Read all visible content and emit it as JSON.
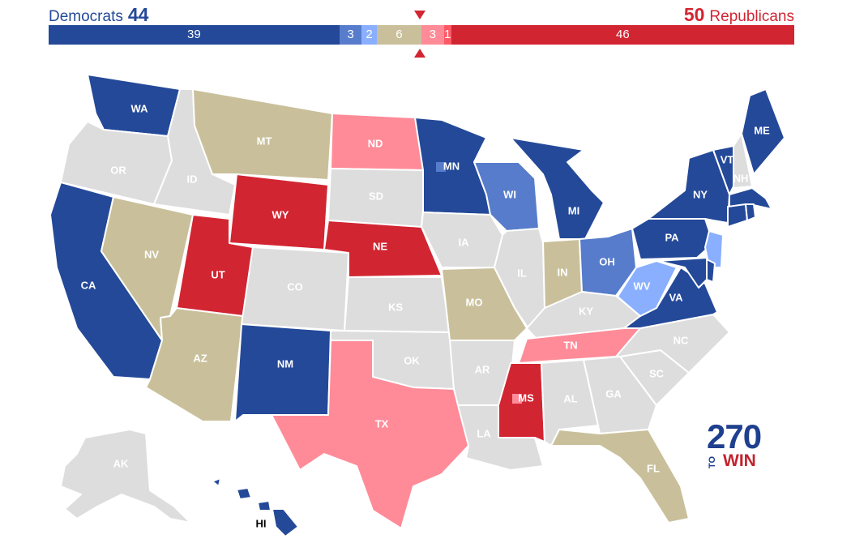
{
  "header": {
    "dem_label": "Democrats",
    "dem_total": "44",
    "rep_total": "50",
    "rep_label": "Republicans"
  },
  "bar_segments": [
    {
      "name": "safe-dem",
      "value": 39,
      "label": "39",
      "color": "#244999"
    },
    {
      "name": "likely-dem",
      "value": 3,
      "label": "3",
      "color": "#577ccc"
    },
    {
      "name": "lean-dem",
      "value": 2,
      "label": "2",
      "color": "#8aafff"
    },
    {
      "name": "tossup",
      "value": 6,
      "label": "6",
      "color": "#c9c09b"
    },
    {
      "name": "lean-rep",
      "value": 3,
      "label": "3",
      "color": "#ff8b98"
    },
    {
      "name": "likely-rep",
      "value": 1,
      "label": "1",
      "color": "#ff5865"
    },
    {
      "name": "safe-rep",
      "value": 46,
      "label": "46",
      "color": "#d22532"
    }
  ],
  "colors": {
    "safe_dem": "#244999",
    "likely_dem": "#577ccc",
    "lean_dem": "#8aafff",
    "tossup": "#c9c09b",
    "lean_rep": "#ff8b98",
    "safe_rep": "#d22532",
    "none": "#dddddd"
  },
  "states": [
    {
      "abbr": "WA",
      "rating": "safe_dem"
    },
    {
      "abbr": "OR",
      "rating": "none"
    },
    {
      "abbr": "CA",
      "rating": "safe_dem"
    },
    {
      "abbr": "ID",
      "rating": "none"
    },
    {
      "abbr": "NV",
      "rating": "tossup"
    },
    {
      "abbr": "AZ",
      "rating": "tossup"
    },
    {
      "abbr": "MT",
      "rating": "tossup"
    },
    {
      "abbr": "WY",
      "rating": "safe_rep"
    },
    {
      "abbr": "UT",
      "rating": "safe_rep"
    },
    {
      "abbr": "CO",
      "rating": "none"
    },
    {
      "abbr": "NM",
      "rating": "safe_dem"
    },
    {
      "abbr": "ND",
      "rating": "lean_rep"
    },
    {
      "abbr": "SD",
      "rating": "none"
    },
    {
      "abbr": "NE",
      "rating": "safe_rep"
    },
    {
      "abbr": "KS",
      "rating": "none"
    },
    {
      "abbr": "OK",
      "rating": "none"
    },
    {
      "abbr": "TX",
      "rating": "lean_rep"
    },
    {
      "abbr": "MN",
      "rating": "safe_dem"
    },
    {
      "abbr": "IA",
      "rating": "none"
    },
    {
      "abbr": "MO",
      "rating": "tossup"
    },
    {
      "abbr": "AR",
      "rating": "none"
    },
    {
      "abbr": "LA",
      "rating": "none"
    },
    {
      "abbr": "WI",
      "rating": "likely_dem"
    },
    {
      "abbr": "IL",
      "rating": "none"
    },
    {
      "abbr": "MI",
      "rating": "safe_dem"
    },
    {
      "abbr": "IN",
      "rating": "tossup"
    },
    {
      "abbr": "OH",
      "rating": "likely_dem"
    },
    {
      "abbr": "KY",
      "rating": "none"
    },
    {
      "abbr": "TN",
      "rating": "lean_rep"
    },
    {
      "abbr": "MS",
      "rating": "safe_rep"
    },
    {
      "abbr": "AL",
      "rating": "none"
    },
    {
      "abbr": "GA",
      "rating": "none"
    },
    {
      "abbr": "FL",
      "rating": "tossup"
    },
    {
      "abbr": "SC",
      "rating": "none"
    },
    {
      "abbr": "NC",
      "rating": "none"
    },
    {
      "abbr": "VA",
      "rating": "safe_dem"
    },
    {
      "abbr": "WV",
      "rating": "lean_dem"
    },
    {
      "abbr": "PA",
      "rating": "safe_dem"
    },
    {
      "abbr": "NY",
      "rating": "safe_dem"
    },
    {
      "abbr": "VT",
      "rating": "safe_dem"
    },
    {
      "abbr": "NH",
      "rating": "none"
    },
    {
      "abbr": "ME",
      "rating": "safe_dem"
    },
    {
      "abbr": "MA",
      "rating": "safe_dem"
    },
    {
      "abbr": "CT",
      "rating": "safe_dem"
    },
    {
      "abbr": "RI",
      "rating": "safe_dem"
    },
    {
      "abbr": "NJ",
      "rating": "lean_dem"
    },
    {
      "abbr": "DE",
      "rating": "safe_dem"
    },
    {
      "abbr": "MD",
      "rating": "safe_dem"
    },
    {
      "abbr": "AK",
      "rating": "none"
    },
    {
      "abbr": "HI",
      "rating": "safe_dem"
    }
  ],
  "logo": {
    "number": "270",
    "to": "TO",
    "win": "WIN"
  }
}
